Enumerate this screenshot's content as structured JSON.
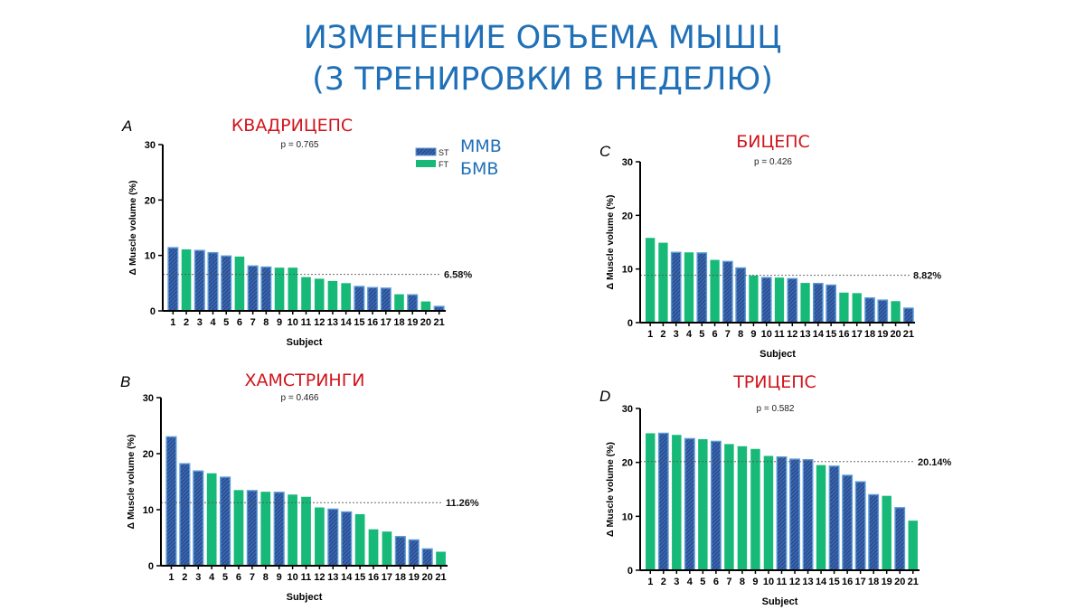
{
  "title": {
    "line1": "ИЗМЕНЕНИЕ ОБЪЕМА МЫШЦ",
    "line2": "(3 ТРЕНИРОВКИ В НЕДЕЛЮ)"
  },
  "legend": {
    "items": [
      {
        "key": "ST",
        "label": "ST",
        "annotation": "ММВ",
        "color": "#5b9bd5",
        "hatch_color": "#1f3a78",
        "pattern": "hatched"
      },
      {
        "key": "FT",
        "label": "FT",
        "annotation": "БМВ",
        "color": "#17b978",
        "pattern": "solid"
      }
    ],
    "annotation_color": "#2070b8"
  },
  "panel_title_color": "#d0141c",
  "chart_data": [
    {
      "type": "bar",
      "panel": "A",
      "title": "КВАДРИЦЕПС",
      "subtitle": "p = 0.765",
      "xlabel": "Subject",
      "ylabel": "Δ Muscle volume (%)",
      "ylim": [
        0,
        30
      ],
      "yticks": [
        0,
        10,
        20,
        30
      ],
      "categories": [
        "1",
        "2",
        "3",
        "4",
        "5",
        "6",
        "7",
        "8",
        "9",
        "10",
        "11",
        "12",
        "13",
        "14",
        "15",
        "16",
        "17",
        "18",
        "19",
        "20",
        "21"
      ],
      "values": [
        11.4,
        11.1,
        10.9,
        10.5,
        9.9,
        9.8,
        8.1,
        7.9,
        7.8,
        7.8,
        6.1,
        5.8,
        5.4,
        5.0,
        4.4,
        4.2,
        4.1,
        3.0,
        2.9,
        1.7,
        0.8
      ],
      "fiber_type": [
        "ST",
        "FT",
        "ST",
        "ST",
        "ST",
        "FT",
        "ST",
        "ST",
        "FT",
        "FT",
        "FT",
        "FT",
        "FT",
        "FT",
        "ST",
        "ST",
        "ST",
        "FT",
        "ST",
        "FT",
        "ST"
      ],
      "mean_line": 6.58,
      "mean_label": "6.58%",
      "grid": false
    },
    {
      "type": "bar",
      "panel": "B",
      "title": "ХАМСТРИНГИ",
      "subtitle": "p = 0.466",
      "xlabel": "Subject",
      "ylabel": "Δ Muscle volume (%)",
      "ylim": [
        0,
        30
      ],
      "yticks": [
        0,
        10,
        20,
        30
      ],
      "categories": [
        "1",
        "2",
        "3",
        "4",
        "5",
        "6",
        "7",
        "8",
        "9",
        "10",
        "11",
        "12",
        "13",
        "14",
        "15",
        "16",
        "17",
        "18",
        "19",
        "20",
        "21"
      ],
      "values": [
        23.0,
        18.2,
        16.9,
        16.5,
        15.8,
        13.5,
        13.4,
        13.2,
        13.1,
        12.7,
        12.3,
        10.4,
        10.1,
        9.6,
        9.2,
        6.5,
        6.1,
        5.2,
        4.6,
        3.0,
        2.5
      ],
      "fiber_type": [
        "ST",
        "ST",
        "ST",
        "FT",
        "ST",
        "FT",
        "ST",
        "FT",
        "ST",
        "FT",
        "FT",
        "FT",
        "ST",
        "ST",
        "FT",
        "FT",
        "FT",
        "ST",
        "ST",
        "ST",
        "FT"
      ],
      "mean_line": 11.26,
      "mean_label": "11.26%",
      "grid": false
    },
    {
      "type": "bar",
      "panel": "C",
      "title": "БИЦЕПС",
      "subtitle": "p = 0.426",
      "xlabel": "Subject",
      "ylabel": "Δ Muscle volume (%)",
      "ylim": [
        0,
        30
      ],
      "yticks": [
        0,
        10,
        20,
        30
      ],
      "categories": [
        "1",
        "2",
        "3",
        "4",
        "5",
        "6",
        "7",
        "8",
        "9",
        "10",
        "11",
        "12",
        "13",
        "14",
        "15",
        "16",
        "17",
        "18",
        "19",
        "20",
        "21"
      ],
      "values": [
        15.8,
        14.9,
        13.1,
        13.1,
        13.0,
        11.7,
        11.4,
        10.2,
        8.8,
        8.4,
        8.4,
        8.2,
        7.4,
        7.3,
        7.0,
        5.6,
        5.5,
        4.6,
        4.2,
        4.0,
        2.7
      ],
      "fiber_type": [
        "FT",
        "FT",
        "ST",
        "FT",
        "ST",
        "FT",
        "ST",
        "ST",
        "FT",
        "ST",
        "FT",
        "ST",
        "FT",
        "ST",
        "ST",
        "FT",
        "FT",
        "ST",
        "ST",
        "FT",
        "ST"
      ],
      "mean_line": 8.82,
      "mean_label": "8.82%",
      "grid": false
    },
    {
      "type": "bar",
      "panel": "D",
      "title": "ТРИЦЕПС",
      "subtitle": "p = 0.582",
      "xlabel": "Subject",
      "ylabel": "Δ Muscle volume (%)",
      "ylim": [
        0,
        30
      ],
      "yticks": [
        0,
        10,
        20,
        30
      ],
      "categories": [
        "1",
        "2",
        "3",
        "4",
        "5",
        "6",
        "7",
        "8",
        "9",
        "10",
        "11",
        "12",
        "13",
        "14",
        "15",
        "16",
        "17",
        "18",
        "19",
        "20",
        "21"
      ],
      "values": [
        25.4,
        25.4,
        25.1,
        24.4,
        24.3,
        23.9,
        23.4,
        23.0,
        22.5,
        21.2,
        21.0,
        20.6,
        20.5,
        19.5,
        19.3,
        17.6,
        16.4,
        14.0,
        13.8,
        11.6,
        9.2
      ],
      "fiber_type": [
        "FT",
        "ST",
        "FT",
        "ST",
        "FT",
        "ST",
        "FT",
        "FT",
        "FT",
        "FT",
        "ST",
        "ST",
        "ST",
        "FT",
        "ST",
        "ST",
        "ST",
        "ST",
        "FT",
        "ST",
        "FT"
      ],
      "mean_line": 20.14,
      "mean_label": "20.14%",
      "grid": false
    }
  ]
}
